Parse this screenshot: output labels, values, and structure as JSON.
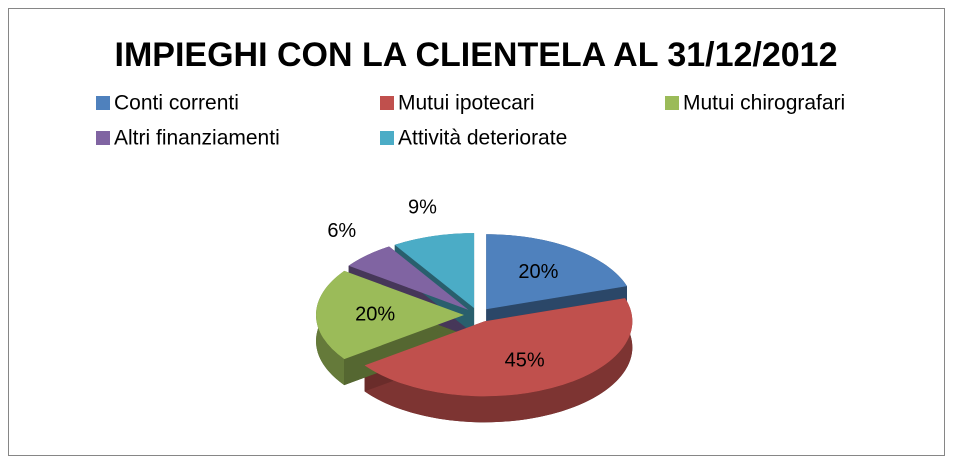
{
  "chart_data": {
    "type": "pie3d",
    "title": "IMPIEGHI CON LA CLIENTELA AL 31/12/2012",
    "categories": [
      "Conti correnti",
      "Mutui ipotecari",
      "Mutui chirografari",
      "Altri finanziamenti",
      "Attività deteriorate"
    ],
    "values": [
      20,
      45,
      20,
      6,
      9
    ],
    "value_labels": [
      "20%",
      "45%",
      "20%",
      "6%",
      "9%"
    ],
    "colors": [
      "#4f81bd",
      "#c0504d",
      "#9bbb59",
      "#8064a2",
      "#4bacc6"
    ],
    "legend": "top"
  }
}
